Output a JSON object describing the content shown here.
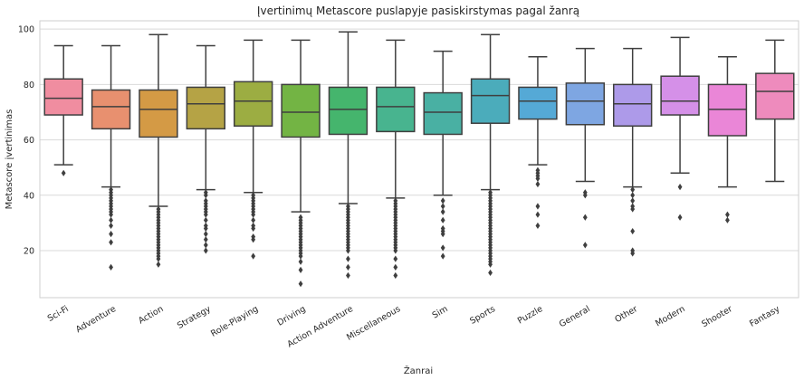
{
  "chart_data": {
    "type": "box",
    "title": "Įvertinimų Metascore puslapyje pasiskirstymas pagal žanrą",
    "xlabel": "Žanrai",
    "ylabel": "Metascore įvertinimas",
    "ylim": [
      3,
      103
    ],
    "yticks": [
      20,
      40,
      60,
      80,
      100
    ],
    "grid": true,
    "categories": [
      "Sci-Fi",
      "Adventure",
      "Action",
      "Strategy",
      "Role-Playing",
      "Driving",
      "Action Adventure",
      "Miscellaneous",
      "Sim",
      "Sports",
      "Puzzle",
      "General",
      "Other",
      "Modern",
      "Shooter",
      "Fantasy"
    ],
    "colors": [
      "#f08da0",
      "#e8906f",
      "#d49a45",
      "#b5a345",
      "#9cad42",
      "#73b444",
      "#45b56d",
      "#48b48f",
      "#49b0a3",
      "#4bacbb",
      "#55a9d6",
      "#7ea6e2",
      "#ad9ae9",
      "#d590e8",
      "#ea86d7",
      "#ee8bbd"
    ],
    "boxes": [
      {
        "whislo": 51,
        "q1": 69,
        "med": 75,
        "q3": 82,
        "whishi": 94,
        "fliers": [
          48
        ]
      },
      {
        "whislo": 43,
        "q1": 64,
        "med": 72,
        "q3": 78,
        "whishi": 94,
        "fliers": [
          42,
          41,
          40,
          39,
          38,
          37,
          36,
          35,
          34,
          33,
          31,
          29,
          26,
          23,
          14
        ]
      },
      {
        "whislo": 36,
        "q1": 61,
        "med": 71,
        "q3": 78,
        "whishi": 98,
        "fliers": [
          35,
          34,
          33,
          32,
          31,
          30,
          29,
          28,
          27,
          26,
          25,
          24,
          23,
          22,
          21,
          20,
          19,
          18,
          17,
          15
        ]
      },
      {
        "whislo": 42,
        "q1": 64,
        "med": 73,
        "q3": 79,
        "whishi": 94,
        "fliers": [
          41,
          40,
          38,
          37,
          36,
          35,
          34,
          33,
          31,
          29,
          28,
          26,
          24,
          22,
          20
        ]
      },
      {
        "whislo": 41,
        "q1": 65,
        "med": 74,
        "q3": 81,
        "whishi": 96,
        "fliers": [
          40,
          39,
          38,
          37,
          36,
          35,
          34,
          33,
          31,
          29,
          28,
          25,
          24,
          18
        ]
      },
      {
        "whislo": 34,
        "q1": 61,
        "med": 70,
        "q3": 80,
        "whishi": 96,
        "fliers": [
          32,
          31,
          30,
          29,
          28,
          27,
          26,
          25,
          24,
          23,
          22,
          21,
          20,
          19,
          18,
          16,
          13,
          8
        ]
      },
      {
        "whislo": 37,
        "q1": 62,
        "med": 71,
        "q3": 79,
        "whishi": 99,
        "fliers": [
          36,
          35,
          34,
          33,
          32,
          31,
          30,
          29,
          28,
          27,
          26,
          25,
          24,
          23,
          22,
          21,
          20,
          17,
          14,
          11
        ]
      },
      {
        "whislo": 39,
        "q1": 63,
        "med": 72,
        "q3": 79,
        "whishi": 96,
        "fliers": [
          38,
          37,
          36,
          35,
          34,
          33,
          32,
          31,
          30,
          29,
          28,
          27,
          26,
          25,
          24,
          23,
          22,
          21,
          20,
          17,
          14,
          11
        ]
      },
      {
        "whislo": 40,
        "q1": 62,
        "med": 70,
        "q3": 77,
        "whishi": 92,
        "fliers": [
          38,
          36,
          34,
          31,
          28,
          27,
          26,
          21,
          18
        ]
      },
      {
        "whislo": 42,
        "q1": 66,
        "med": 76,
        "q3": 82,
        "whishi": 98,
        "fliers": [
          41,
          40,
          39,
          38,
          37,
          36,
          35,
          34,
          33,
          32,
          31,
          30,
          29,
          28,
          27,
          26,
          25,
          24,
          23,
          22,
          21,
          20,
          19,
          18,
          17,
          16,
          15,
          12
        ]
      },
      {
        "whislo": 51,
        "q1": 67.5,
        "med": 74,
        "q3": 79,
        "whishi": 90,
        "fliers": [
          49,
          48,
          47,
          46,
          44,
          36,
          33,
          29
        ]
      },
      {
        "whislo": 45,
        "q1": 65.5,
        "med": 74,
        "q3": 80.5,
        "whishi": 93,
        "fliers": [
          41,
          40,
          32,
          22
        ]
      },
      {
        "whislo": 43,
        "q1": 65,
        "med": 73,
        "q3": 80,
        "whishi": 93,
        "fliers": [
          42,
          40,
          38,
          36,
          35,
          27,
          20,
          19
        ]
      },
      {
        "whislo": 48,
        "q1": 69,
        "med": 74,
        "q3": 83,
        "whishi": 97,
        "fliers": [
          43,
          32
        ]
      },
      {
        "whislo": 43,
        "q1": 61.5,
        "med": 71,
        "q3": 80,
        "whishi": 90,
        "fliers": [
          33,
          31
        ]
      },
      {
        "whislo": 45,
        "q1": 67.5,
        "med": 77.5,
        "q3": 84,
        "whishi": 96,
        "fliers": []
      }
    ]
  }
}
